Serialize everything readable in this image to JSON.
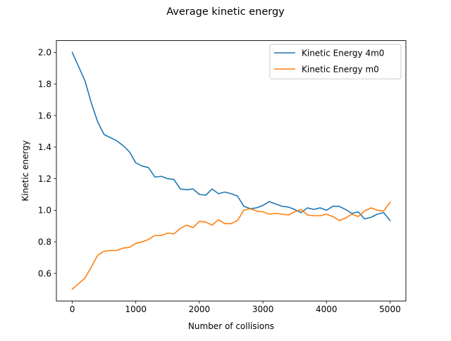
{
  "chart_data": {
    "type": "line",
    "title": "Average kinetic energy",
    "xlabel": "Number of collisions",
    "ylabel": "Kinetic energy",
    "xlim": [
      -250,
      5250
    ],
    "ylim": [
      0.425,
      2.075
    ],
    "xticks": [
      0,
      1000,
      2000,
      3000,
      4000,
      5000
    ],
    "xtick_labels": [
      "0",
      "1000",
      "2000",
      "3000",
      "4000",
      "5000"
    ],
    "yticks": [
      0.6,
      0.8,
      1.0,
      1.2,
      1.4,
      1.6,
      1.8,
      2.0
    ],
    "ytick_labels": [
      "0.6",
      "0.8",
      "1.0",
      "1.2",
      "1.4",
      "1.6",
      "1.8",
      "2.0"
    ],
    "grid": false,
    "legend": "top-right",
    "x": [
      0,
      100,
      200,
      300,
      400,
      500,
      600,
      700,
      800,
      900,
      1000,
      1100,
      1200,
      1300,
      1400,
      1500,
      1600,
      1700,
      1800,
      1900,
      2000,
      2100,
      2200,
      2300,
      2400,
      2500,
      2600,
      2700,
      2800,
      2900,
      3000,
      3100,
      3200,
      3300,
      3400,
      3500,
      3600,
      3700,
      3800,
      3900,
      4000,
      4100,
      4200,
      4300,
      4400,
      4500,
      4600,
      4700,
      4800,
      4900,
      5000
    ],
    "series": [
      {
        "name": "Kinetic Energy 4m0",
        "color": "#1f77b4",
        "values": [
          2.0,
          1.91,
          1.82,
          1.68,
          1.56,
          1.48,
          1.46,
          1.44,
          1.41,
          1.37,
          1.3,
          1.28,
          1.27,
          1.21,
          1.215,
          1.2,
          1.195,
          1.135,
          1.13,
          1.135,
          1.1,
          1.095,
          1.135,
          1.105,
          1.115,
          1.105,
          1.09,
          1.025,
          1.01,
          1.015,
          1.03,
          1.055,
          1.04,
          1.025,
          1.02,
          1.005,
          0.985,
          1.015,
          1.005,
          1.015,
          1.0,
          1.025,
          1.025,
          1.005,
          0.98,
          0.99,
          0.945,
          0.955,
          0.975,
          0.985,
          0.935
        ]
      },
      {
        "name": "Kinetic Energy m0",
        "color": "#ff7f0e",
        "values": [
          0.5,
          0.535,
          0.57,
          0.64,
          0.715,
          0.74,
          0.745,
          0.745,
          0.76,
          0.765,
          0.79,
          0.8,
          0.815,
          0.84,
          0.84,
          0.855,
          0.85,
          0.885,
          0.905,
          0.89,
          0.93,
          0.925,
          0.905,
          0.94,
          0.915,
          0.915,
          0.935,
          1.0,
          1.01,
          0.995,
          0.99,
          0.975,
          0.98,
          0.975,
          0.97,
          0.99,
          1.005,
          0.97,
          0.965,
          0.965,
          0.975,
          0.96,
          0.935,
          0.95,
          0.975,
          0.96,
          0.995,
          1.015,
          1.0,
          0.995,
          1.05
        ]
      }
    ]
  }
}
